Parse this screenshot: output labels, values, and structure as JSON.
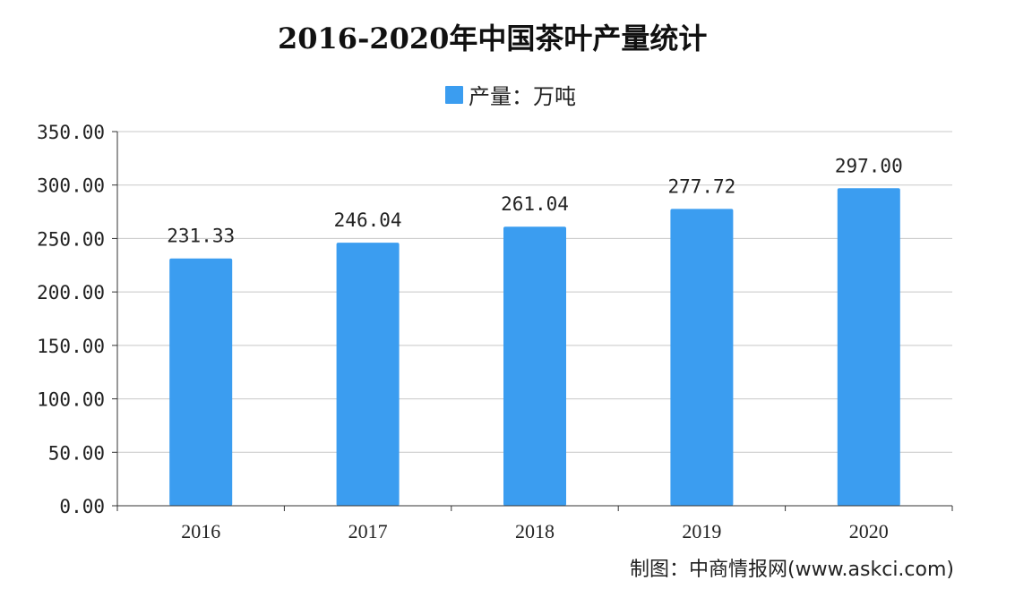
{
  "chart_data": {
    "type": "bar",
    "title": "2016-2020年中国茶叶产量统计",
    "categories": [
      "2016",
      "2017",
      "2018",
      "2019",
      "2020"
    ],
    "series": [
      {
        "name": "产量：万吨",
        "values": [
          231.33,
          246.04,
          261.04,
          277.72,
          297.0
        ]
      }
    ],
    "value_labels": [
      "231.33",
      "246.04",
      "261.04",
      "277.72",
      "297.00"
    ],
    "yticks": [
      "0.00",
      "50.00",
      "100.00",
      "150.00",
      "200.00",
      "250.00",
      "300.00",
      "350.00"
    ],
    "ylim": [
      0,
      350
    ],
    "ystep": 50,
    "xlabel": "",
    "ylabel": "",
    "grid": true,
    "legend_position": "top-center",
    "bar_color": "#3b9df0",
    "grid_color": "#c8c8c8",
    "axis_color": "#333333"
  },
  "credit": "制图：中商情报网(www.askci.com)"
}
